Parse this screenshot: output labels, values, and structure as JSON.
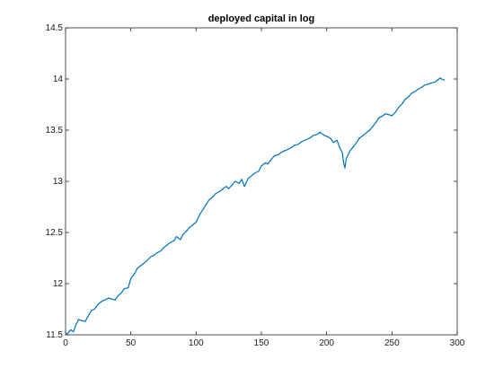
{
  "chart_data": {
    "type": "line",
    "title": "deployed capital in log",
    "xlabel": "",
    "ylabel": "",
    "xlim": [
      0,
      300
    ],
    "ylim": [
      11.5,
      14.5
    ],
    "x_ticks": [
      0,
      50,
      100,
      150,
      200,
      250,
      300
    ],
    "y_ticks": [
      11.5,
      12,
      12.5,
      13,
      13.5,
      14,
      14.5
    ],
    "x_tick_labels": [
      "0",
      "50",
      "100",
      "150",
      "200",
      "250",
      "300"
    ],
    "y_tick_labels": [
      "11.5",
      "12",
      "12.5",
      "13",
      "13.5",
      "14",
      "14.5"
    ],
    "grid": false,
    "series": [
      {
        "color": "#0072BD",
        "x": [
          0,
          2,
          4,
          6,
          8,
          10,
          12,
          15,
          18,
          20,
          22,
          25,
          28,
          30,
          33,
          35,
          38,
          40,
          42,
          45,
          48,
          50,
          53,
          55,
          58,
          60,
          62,
          65,
          68,
          70,
          73,
          75,
          78,
          80,
          83,
          85,
          88,
          90,
          93,
          95,
          98,
          100,
          103,
          105,
          108,
          110,
          113,
          115,
          118,
          120,
          123,
          125,
          128,
          130,
          133,
          135,
          137,
          140,
          143,
          145,
          148,
          150,
          153,
          155,
          158,
          160,
          163,
          165,
          168,
          170,
          173,
          175,
          178,
          180,
          183,
          185,
          188,
          190,
          193,
          195,
          198,
          200,
          203,
          205,
          208,
          210,
          212,
          213,
          214,
          215,
          218,
          220,
          223,
          225,
          228,
          230,
          233,
          235,
          238,
          240,
          243,
          245,
          248,
          250,
          253,
          255,
          258,
          260,
          263,
          265,
          268,
          270,
          273,
          275,
          278,
          280,
          283,
          285,
          287,
          288,
          290
        ],
        "y": [
          11.5,
          11.52,
          11.55,
          11.53,
          11.6,
          11.65,
          11.64,
          11.63,
          11.7,
          11.74,
          11.75,
          11.8,
          11.83,
          11.84,
          11.86,
          11.85,
          11.84,
          11.88,
          11.9,
          11.95,
          11.96,
          12.05,
          12.1,
          12.15,
          12.18,
          12.2,
          12.22,
          12.26,
          12.28,
          12.3,
          12.32,
          12.35,
          12.38,
          12.4,
          12.42,
          12.46,
          12.43,
          12.48,
          12.52,
          12.55,
          12.58,
          12.6,
          12.68,
          12.72,
          12.78,
          12.82,
          12.85,
          12.88,
          12.9,
          12.92,
          12.95,
          12.93,
          12.97,
          13.0,
          12.98,
          13.02,
          12.95,
          13.03,
          13.06,
          13.08,
          13.1,
          13.15,
          13.18,
          13.17,
          13.22,
          13.25,
          13.26,
          13.28,
          13.3,
          13.31,
          13.33,
          13.35,
          13.36,
          13.38,
          13.4,
          13.41,
          13.43,
          13.45,
          13.46,
          13.48,
          13.45,
          13.44,
          13.42,
          13.38,
          13.4,
          13.33,
          13.28,
          13.18,
          13.13,
          13.22,
          13.3,
          13.33,
          13.38,
          13.42,
          13.45,
          13.47,
          13.5,
          13.53,
          13.58,
          13.62,
          13.64,
          13.66,
          13.65,
          13.64,
          13.68,
          13.72,
          13.76,
          13.8,
          13.83,
          13.86,
          13.88,
          13.9,
          13.92,
          13.94,
          13.95,
          13.96,
          13.97,
          13.99,
          14.01,
          14.0,
          13.99
        ]
      }
    ]
  }
}
